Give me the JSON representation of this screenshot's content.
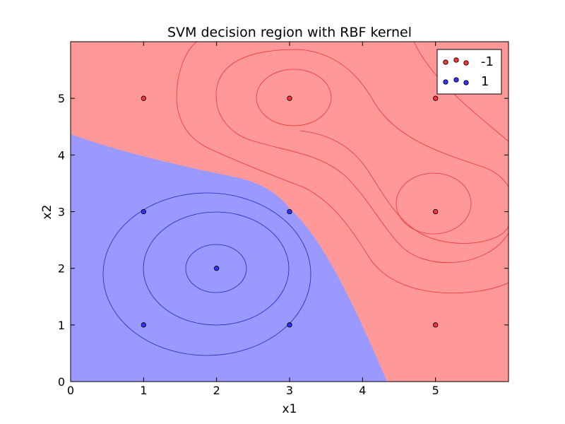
{
  "chart_data": {
    "type": "scatter",
    "title": "SVM decision region with RBF kernel",
    "xlabel": "x1",
    "ylabel": "x2",
    "xlim": [
      0,
      6
    ],
    "ylim": [
      0,
      6
    ],
    "xticks": [
      0,
      1,
      2,
      3,
      4,
      5
    ],
    "yticks": [
      0,
      1,
      2,
      3,
      4,
      5
    ],
    "grid": false,
    "legend_position": "top-right",
    "colors": {
      "negative_region": "#ff9999",
      "positive_region": "#9999ff",
      "negative_point": "#ff3333",
      "positive_point": "#3333ff",
      "negative_contour": "#ee3333",
      "positive_contour": "#2222cc",
      "point_edge": "#000000"
    },
    "series": [
      {
        "name": "-1",
        "points": [
          [
            1,
            5
          ],
          [
            3,
            5
          ],
          [
            5,
            5
          ],
          [
            5,
            3
          ],
          [
            5,
            1
          ]
        ]
      },
      {
        "name": "1",
        "points": [
          [
            1,
            3
          ],
          [
            3,
            3
          ],
          [
            2,
            2
          ],
          [
            1,
            1
          ],
          [
            3,
            1
          ]
        ]
      }
    ]
  }
}
